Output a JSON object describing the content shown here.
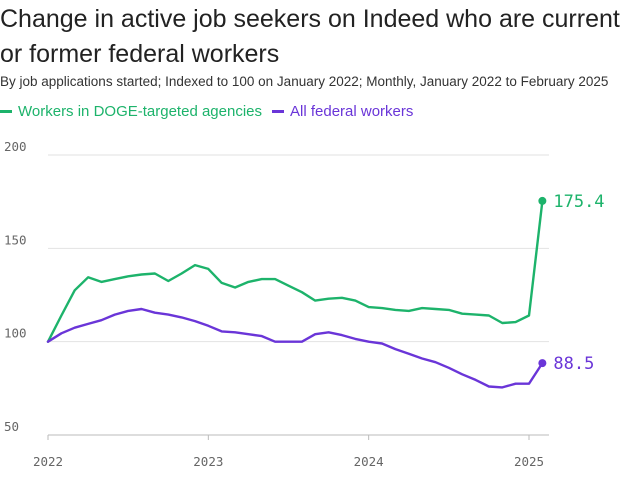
{
  "title": "Change in active job seekers on Indeed who are current or former federal workers",
  "subtitle": "By job applications started; Indexed to 100 on January 2022; Monthly, January 2022 to February 2025",
  "colors": {
    "doge": "#1db36b",
    "all": "#6a35d8",
    "grid": "#e2e2e2",
    "axis": "#bbbbbb"
  },
  "chart_data": {
    "type": "line",
    "title": "Change in active job seekers on Indeed who are current or former federal workers",
    "subtitle": "By job applications started; Indexed to 100 on January 2022; Monthly, January 2022 to February 2025",
    "xlabel": "",
    "ylabel": "",
    "ylim": [
      50,
      200
    ],
    "yticks": [
      200,
      150,
      100,
      50
    ],
    "xticks": [
      "2022",
      "2023",
      "2024",
      "2025"
    ],
    "grid": true,
    "legend_position": "top-left",
    "x": [
      "2022-01",
      "2022-02",
      "2022-03",
      "2022-04",
      "2022-05",
      "2022-06",
      "2022-07",
      "2022-08",
      "2022-09",
      "2022-10",
      "2022-11",
      "2022-12",
      "2023-01",
      "2023-02",
      "2023-03",
      "2023-04",
      "2023-05",
      "2023-06",
      "2023-07",
      "2023-08",
      "2023-09",
      "2023-10",
      "2023-11",
      "2023-12",
      "2024-01",
      "2024-02",
      "2024-03",
      "2024-04",
      "2024-05",
      "2024-06",
      "2024-07",
      "2024-08",
      "2024-09",
      "2024-10",
      "2024-11",
      "2024-12",
      "2025-01",
      "2025-02"
    ],
    "series": [
      {
        "name": "Workers in DOGE-targeted agencies",
        "color": "#1db36b",
        "end_label": "175.4",
        "values": [
          100,
          114,
          127.5,
          134.5,
          132,
          133.5,
          135,
          136,
          136.5,
          132.5,
          136.5,
          141,
          139,
          131.5,
          129,
          132,
          133.5,
          133.5,
          130,
          126.5,
          122,
          123,
          123.5,
          122,
          118.5,
          118,
          117,
          116.5,
          118,
          117.5,
          117,
          115,
          114.5,
          114,
          110,
          110.5,
          114,
          175.4
        ]
      },
      {
        "name": "All federal workers",
        "color": "#6a35d8",
        "end_label": "88.5",
        "values": [
          100,
          104.5,
          107.5,
          109.5,
          111.5,
          114.5,
          116.5,
          117.5,
          115.5,
          114.5,
          113,
          111,
          108.5,
          105.5,
          105,
          104,
          103,
          100,
          100,
          100,
          104,
          105,
          103.5,
          101.5,
          100,
          99,
          96,
          93.5,
          91,
          89,
          86,
          82.5,
          79.5,
          76,
          75.5,
          77.5,
          77.5,
          88.5
        ]
      }
    ]
  }
}
